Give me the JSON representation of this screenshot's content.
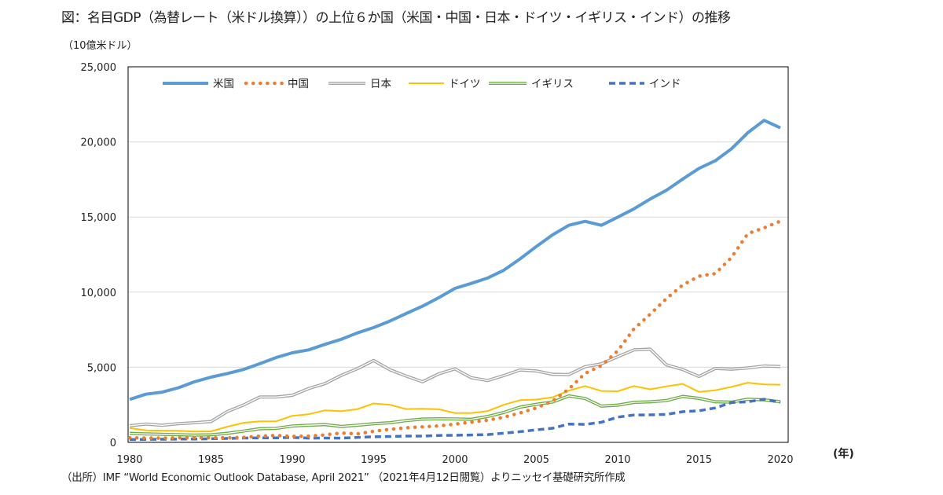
{
  "title": "図：名目GDP（為替レート（米ドル換算））の上位６か国（米国・中国・日本・ドイツ・イギリス・インド）の推移",
  "unit_label": "（10億米ドル）",
  "x_unit_label": "(年)",
  "source": "（出所）IMF “World Economic Outlook Database, April 2021” （2021年4月12日閲覧）よりニッセイ基礎研究所作成",
  "chart_data": {
    "type": "line",
    "title": "図：名目GDP（為替レート（米ドル換算））の上位６か国（米国・中国・日本・ドイツ・イギリス・インド）の推移",
    "ylabel": "（10億米ドル）",
    "xlabel": "(年)",
    "ylim": [
      0,
      25000
    ],
    "xlim": [
      1980,
      2020
    ],
    "yticks": [
      "0",
      "5,000",
      "10,000",
      "15,000",
      "20,000",
      "25,000"
    ],
    "xticks": [
      "1980",
      "1985",
      "1990",
      "1995",
      "2000",
      "2005",
      "2010",
      "2015",
      "2020"
    ],
    "grid": "horizontal",
    "legend": "top-inside",
    "x": [
      1980,
      1981,
      1982,
      1983,
      1984,
      1985,
      1986,
      1987,
      1988,
      1989,
      1990,
      1991,
      1992,
      1993,
      1994,
      1995,
      1996,
      1997,
      1998,
      1999,
      2000,
      2001,
      2002,
      2003,
      2004,
      2005,
      2006,
      2007,
      2008,
      2009,
      2010,
      2011,
      2012,
      2013,
      2014,
      2015,
      2016,
      2017,
      2018,
      2019,
      2020
    ],
    "series": [
      {
        "name": "米国",
        "color": "#5b9bd5",
        "style": "solid-thick",
        "values": [
          2857,
          3207,
          3344,
          3634,
          4037,
          4339,
          4580,
          4855,
          5236,
          5642,
          5963,
          6158,
          6520,
          6859,
          7287,
          7640,
          8073,
          8578,
          9063,
          9631,
          10252,
          10582,
          10936,
          11458,
          12214,
          13037,
          13815,
          14452,
          14713,
          14449,
          14992,
          15543,
          16197,
          16785,
          17527,
          18238,
          18745,
          19543,
          20612,
          21433,
          20937
        ]
      },
      {
        "name": "中国",
        "color": "#ed7d31",
        "style": "dotted",
        "values": [
          306,
          290,
          285,
          304,
          315,
          310,
          302,
          330,
          412,
          459,
          398,
          415,
          495,
          623,
          566,
          738,
          870,
          966,
          1035,
          1095,
          1215,
          1346,
          1477,
          1676,
          1955,
          2290,
          2755,
          3550,
          4594,
          5102,
          6087,
          7552,
          8532,
          9570,
          10476,
          11062,
          11233,
          12310,
          13895,
          14280,
          14723
        ]
      },
      {
        "name": "日本",
        "color": "#a5a5a5",
        "style": "double",
        "values": [
          1105,
          1218,
          1134,
          1244,
          1310,
          1386,
          2051,
          2485,
          3016,
          3017,
          3133,
          3584,
          3909,
          4454,
          4907,
          5449,
          4834,
          4415,
          4033,
          4562,
          4888,
          4304,
          4115,
          4445,
          4815,
          4755,
          4530,
          4515,
          5038,
          5231,
          5700,
          6157,
          6203,
          5156,
          4850,
          4389,
          4923,
          4867,
          4955,
          5082,
          5049
        ]
      },
      {
        "name": "ドイツ",
        "color": "#ffc000",
        "style": "solid",
        "values": [
          950,
          800,
          780,
          770,
          720,
          730,
          1040,
          1300,
          1400,
          1400,
          1770,
          1870,
          2130,
          2070,
          2210,
          2590,
          2500,
          2220,
          2240,
          2200,
          1950,
          1950,
          2080,
          2500,
          2810,
          2850,
          3000,
          3440,
          3750,
          3420,
          3400,
          3750,
          3530,
          3730,
          3890,
          3360,
          3470,
          3690,
          3970,
          3860,
          3840
        ]
      },
      {
        "name": "イギリス",
        "color": "#70ad47",
        "style": "double",
        "values": [
          600,
          560,
          540,
          510,
          480,
          500,
          600,
          750,
          910,
          930,
          1090,
          1140,
          1180,
          1060,
          1140,
          1240,
          1310,
          1450,
          1550,
          1570,
          1560,
          1540,
          1720,
          1990,
          2350,
          2530,
          2690,
          3090,
          2920,
          2410,
          2480,
          2660,
          2700,
          2780,
          3060,
          2930,
          2700,
          2680,
          2870,
          2830,
          2710
        ]
      },
      {
        "name": "インド",
        "color": "#4472c4",
        "style": "dashed",
        "values": [
          190,
          200,
          210,
          220,
          220,
          240,
          260,
          290,
          300,
          300,
          330,
          280,
          290,
          280,
          330,
          370,
          390,
          420,
          420,
          460,
          470,
          490,
          520,
          610,
          710,
          830,
          940,
          1220,
          1200,
          1340,
          1680,
          1820,
          1830,
          1860,
          2040,
          2100,
          2290,
          2650,
          2700,
          2870,
          2660
        ]
      }
    ]
  }
}
